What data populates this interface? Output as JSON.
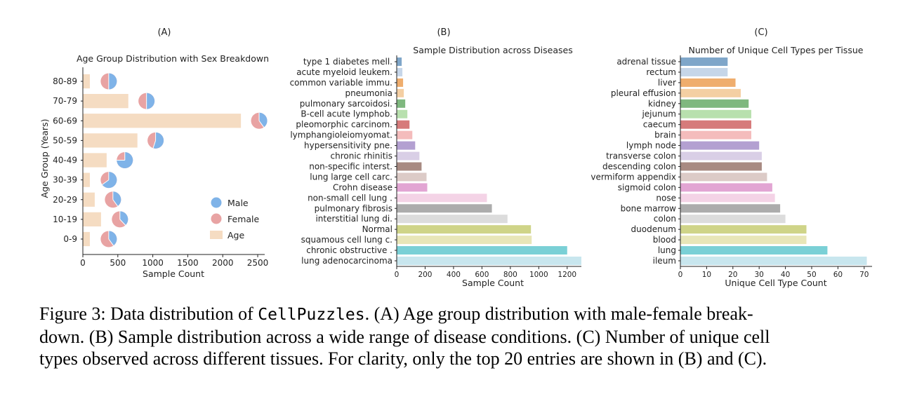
{
  "caption": {
    "line1_prefix": "Figure 3: Data distribution of ",
    "line1_code": "CellPuzzles",
    "line1_suffix": ". (A) Age group distribution with male-female break-",
    "line2": "down. (B) Sample distribution across a wide range of disease conditions. (C) Number of unique cell",
    "line3": "types observed across different tissues. For clarity, only the top 20 entries are shown in (B) and (C)."
  },
  "chart_data": [
    {
      "panel_label": "(A)",
      "type": "bar",
      "title": "Age Group Distribution with Sex Breakdown",
      "xlabel": "Sample Count",
      "ylabel": "Age Group (Years)",
      "xlim": [
        0,
        2600
      ],
      "xticks": [
        0,
        500,
        1000,
        1500,
        2000,
        2500
      ],
      "categories": [
        "80-89",
        "70-79",
        "60-69",
        "50-59",
        "40-49",
        "30-39",
        "20-29",
        "10-19",
        "0-9"
      ],
      "values": [
        100,
        650,
        2260,
        780,
        340,
        100,
        170,
        260,
        100
      ],
      "pies": [
        {
          "position": 370,
          "male_fraction": 0.5
        },
        {
          "position": 910,
          "male_fraction": 0.5
        },
        {
          "position": 2520,
          "male_fraction": 0.4
        },
        {
          "position": 1040,
          "male_fraction": 0.55
        },
        {
          "position": 600,
          "male_fraction": 0.75
        },
        {
          "position": 370,
          "male_fraction": 0.65
        },
        {
          "position": 430,
          "male_fraction": 0.4
        },
        {
          "position": 530,
          "male_fraction": 0.38
        },
        {
          "position": 370,
          "male_fraction": 0.4
        }
      ],
      "legend": {
        "placement": "lower-right",
        "entries": [
          "Male",
          "Female",
          "Age"
        ]
      },
      "colors": {
        "male": "#7fb3e8",
        "female": "#e8a3a3",
        "age": "#f5dcc2"
      }
    },
    {
      "panel_label": "(B)",
      "type": "bar",
      "title": "Sample Distribution across Diseases",
      "xlabel": "Sample Count",
      "xlim": [
        0,
        1300
      ],
      "xticks": [
        0,
        200,
        400,
        600,
        800,
        1000,
        1200
      ],
      "categories": [
        "type 1 diabetes mell.",
        "acute myeloid leukem.",
        "common variable immu.",
        "pneumonia",
        "pulmonary sarcoidosi.",
        "B-cell acute lymphob.",
        "pleomorphic carcinom.",
        "lymphangioleiomyomat.",
        "hypersensitivity pne.",
        "chronic rhinitis",
        "non-specific interst.",
        "lung large cell carc.",
        "Crohn disease",
        "non-small cell lung .",
        "pulmonary fibrosis",
        "interstitial lung di.",
        "Normal",
        "squamous cell lung c.",
        "chronic obstructive .",
        "lung adenocarcinoma"
      ],
      "values": [
        35,
        40,
        45,
        50,
        60,
        75,
        90,
        110,
        130,
        160,
        175,
        210,
        215,
        635,
        670,
        780,
        945,
        950,
        1200,
        1300
      ],
      "colors": [
        "#7fa6c9",
        "#c6d6e9",
        "#efad6d",
        "#f4cfa3",
        "#7fb87f",
        "#b8e0ae",
        "#d67b7b",
        "#f4bcbc",
        "#b3a0d1",
        "#d9cfe6",
        "#a88a82",
        "#dccbc7",
        "#e2a5d3",
        "#f4d3e6",
        "#acacac",
        "#dcdcdc",
        "#cfd488",
        "#e8e6b8",
        "#7ad0d6",
        "#c8e6ee"
      ]
    },
    {
      "panel_label": "(C)",
      "type": "bar",
      "title": "Number of Unique Cell Types per Tissue",
      "xlabel": "Unique Cell Type Count",
      "xlim": [
        0,
        73
      ],
      "xticks": [
        0,
        10,
        20,
        30,
        40,
        50,
        60,
        70
      ],
      "categories": [
        "adrenal tissue",
        "rectum",
        "liver",
        "pleural effusion",
        "kidney",
        "jejunum",
        "caecum",
        "brain",
        "lymph node",
        "transverse colon",
        "descending colon",
        "vermiform appendix",
        "sigmoid colon",
        "nose",
        "bone marrow",
        "colon",
        "duodenum",
        "blood",
        "lung",
        "ileum"
      ],
      "values": [
        18,
        18,
        21,
        23,
        26,
        27,
        27,
        27,
        30,
        31,
        31,
        33,
        35,
        36,
        38,
        40,
        48,
        48,
        56,
        71
      ],
      "colors": [
        "#7fa6c9",
        "#c6d6e9",
        "#efad6d",
        "#f4cfa3",
        "#7fb87f",
        "#b8e0ae",
        "#d67b7b",
        "#f4bcbc",
        "#b3a0d1",
        "#d9cfe6",
        "#a88a82",
        "#dccbc7",
        "#e2a5d3",
        "#f4d3e6",
        "#acacac",
        "#dcdcdc",
        "#cfd488",
        "#e8e6b8",
        "#7ad0d6",
        "#c8e6ee"
      ]
    }
  ]
}
